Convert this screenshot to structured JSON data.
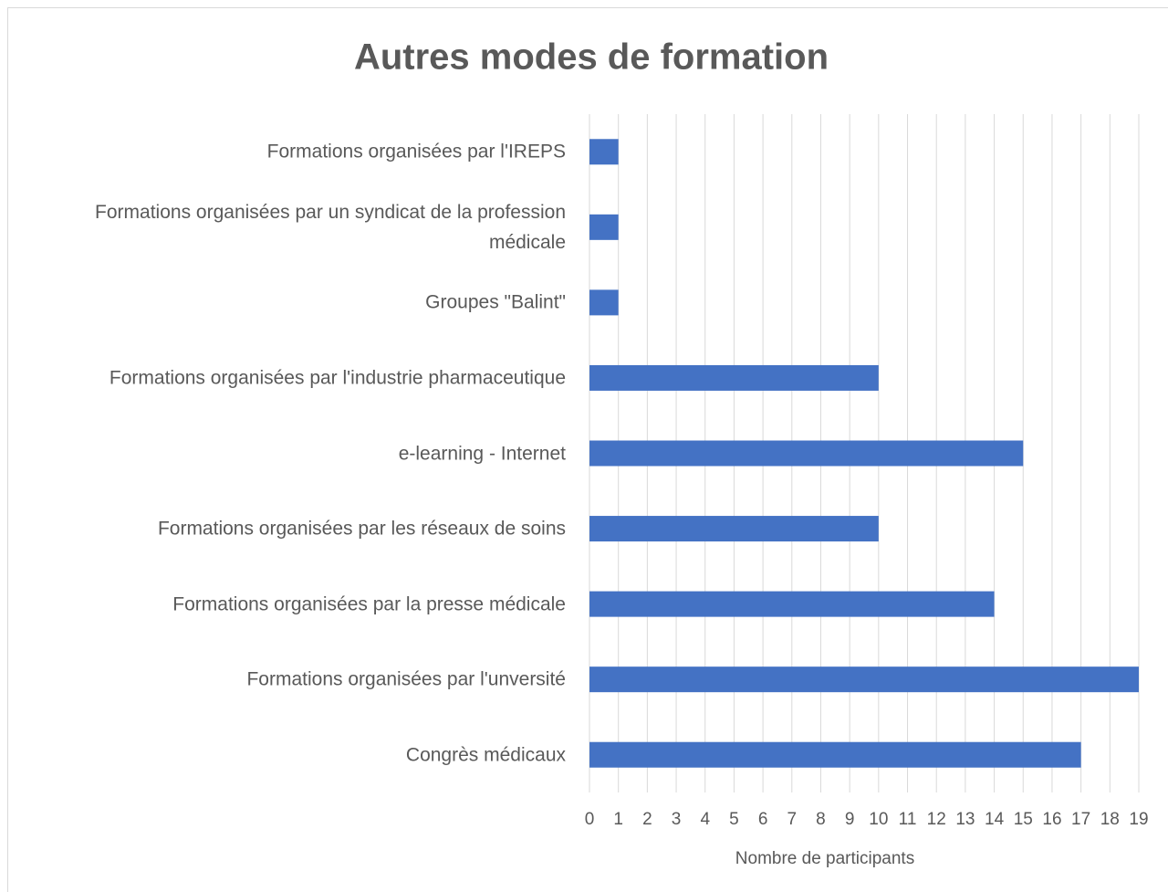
{
  "chart_data": {
    "type": "barh",
    "title": "Autres modes de formation",
    "categories": [
      "Formations organisées par l'IREPS",
      "Formations organisées par un syndicat de la profession médicale",
      "Groupes \"Balint\"",
      "Formations organisées par l'industrie pharmaceutique",
      "e-learning - Internet",
      "Formations organisées par les réseaux de soins",
      "Formations organisées par la presse médicale",
      "Formations organisées par l'unversité",
      "Congrès médicaux"
    ],
    "values": [
      1,
      1,
      1,
      10,
      15,
      10,
      14,
      19,
      17
    ],
    "color": "#4472c4",
    "xlabel": "Nombre de participants",
    "xlim": [
      0,
      19
    ],
    "xticks": [
      0,
      1,
      2,
      3,
      4,
      5,
      6,
      7,
      8,
      9,
      10,
      11,
      12,
      13,
      14,
      15,
      16,
      17,
      18,
      19
    ],
    "grid": true
  }
}
